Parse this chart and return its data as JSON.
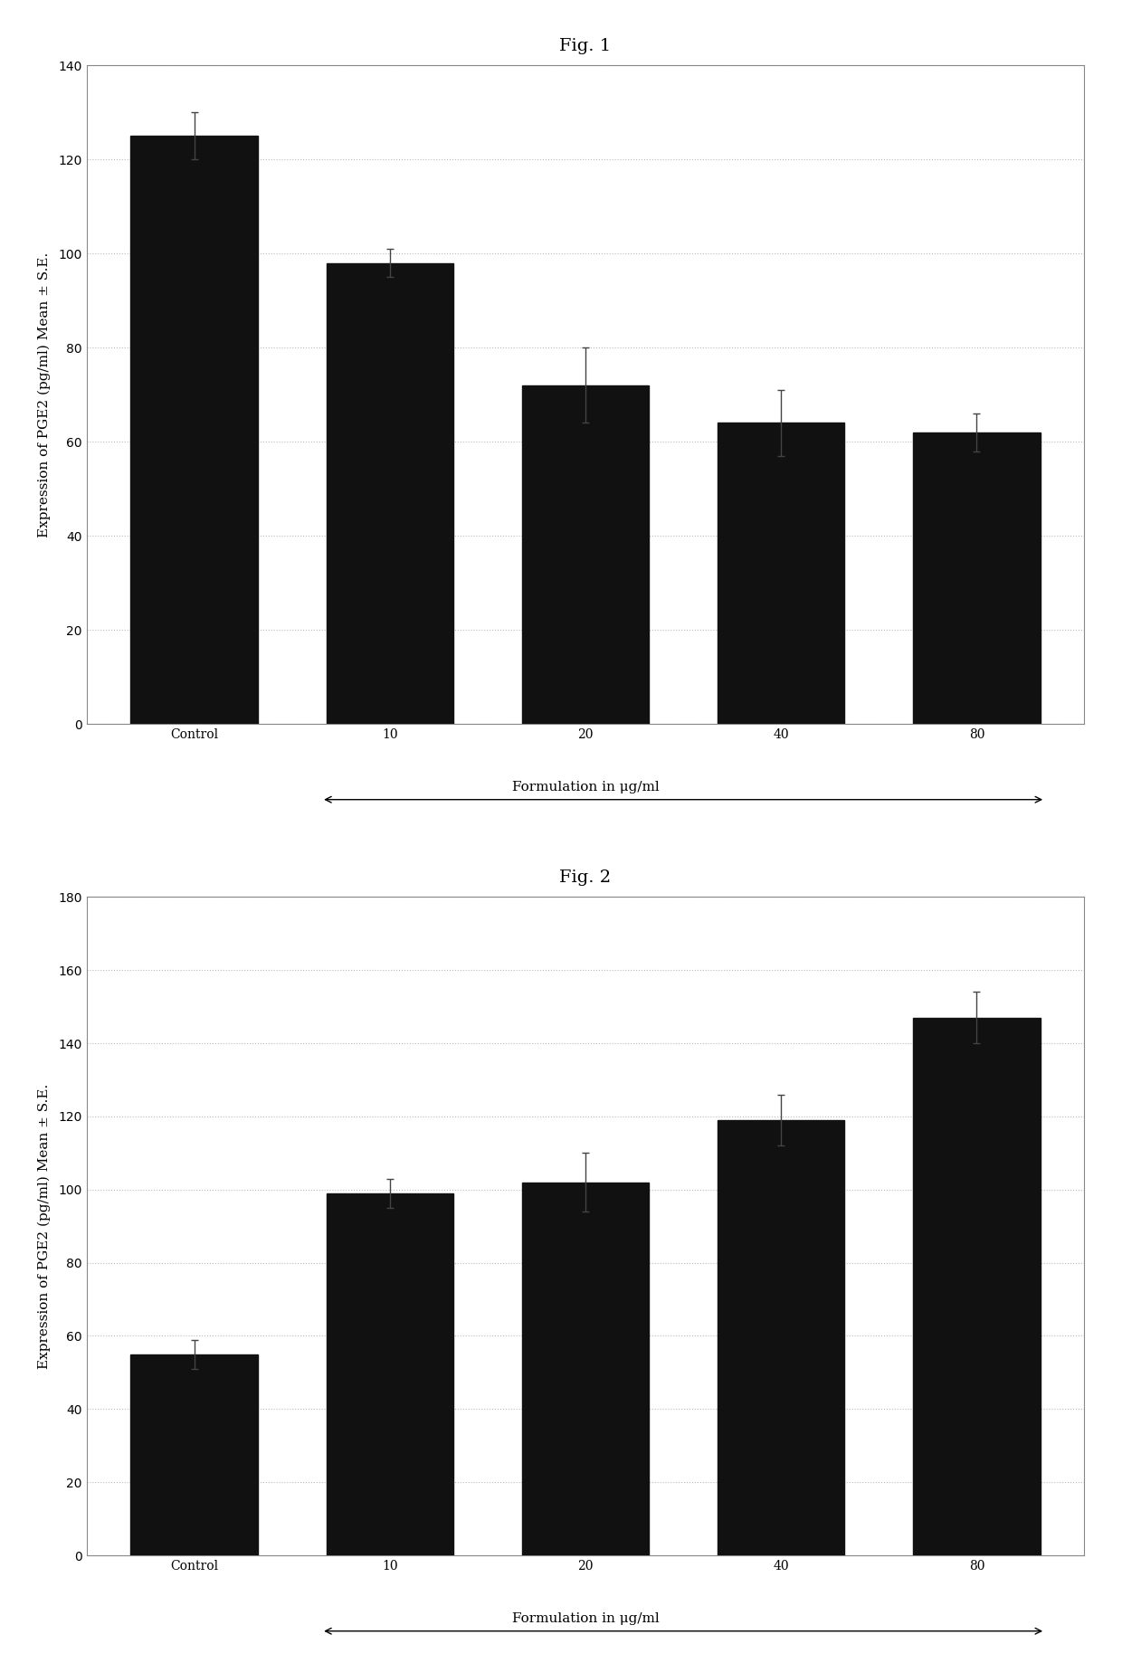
{
  "fig1": {
    "title": "Fig. 1",
    "categories": [
      "Control",
      "10",
      "20",
      "40",
      "80"
    ],
    "values": [
      125,
      98,
      72,
      64,
      62
    ],
    "errors": [
      5,
      3,
      8,
      7,
      4
    ],
    "bar_color": "#111111",
    "ylabel": "Expression of PGE2 (pg/ml) Mean ± S.E.",
    "xlabel": "Formulation in μg/ml",
    "ylim": [
      0,
      140
    ],
    "yticks": [
      0,
      20,
      40,
      60,
      80,
      100,
      120,
      140
    ]
  },
  "fig2": {
    "title": "Fig. 2",
    "categories": [
      "Control",
      "10",
      "20",
      "40",
      "80"
    ],
    "values": [
      55,
      99,
      102,
      119,
      147
    ],
    "errors": [
      4,
      4,
      8,
      7,
      7
    ],
    "bar_color": "#111111",
    "ylabel": "Expression of PGE2 (pg/ml) Mean ± S.E.",
    "xlabel": "Formulation in μg/ml",
    "ylim": [
      0,
      180
    ],
    "yticks": [
      0,
      20,
      40,
      60,
      80,
      100,
      120,
      140,
      160,
      180
    ]
  },
  "background_color": "#ffffff",
  "bar_width": 0.65,
  "grid_color": "#bbbbbb",
  "font_family": "serif",
  "title_fontsize": 14,
  "label_fontsize": 11,
  "tick_fontsize": 10
}
